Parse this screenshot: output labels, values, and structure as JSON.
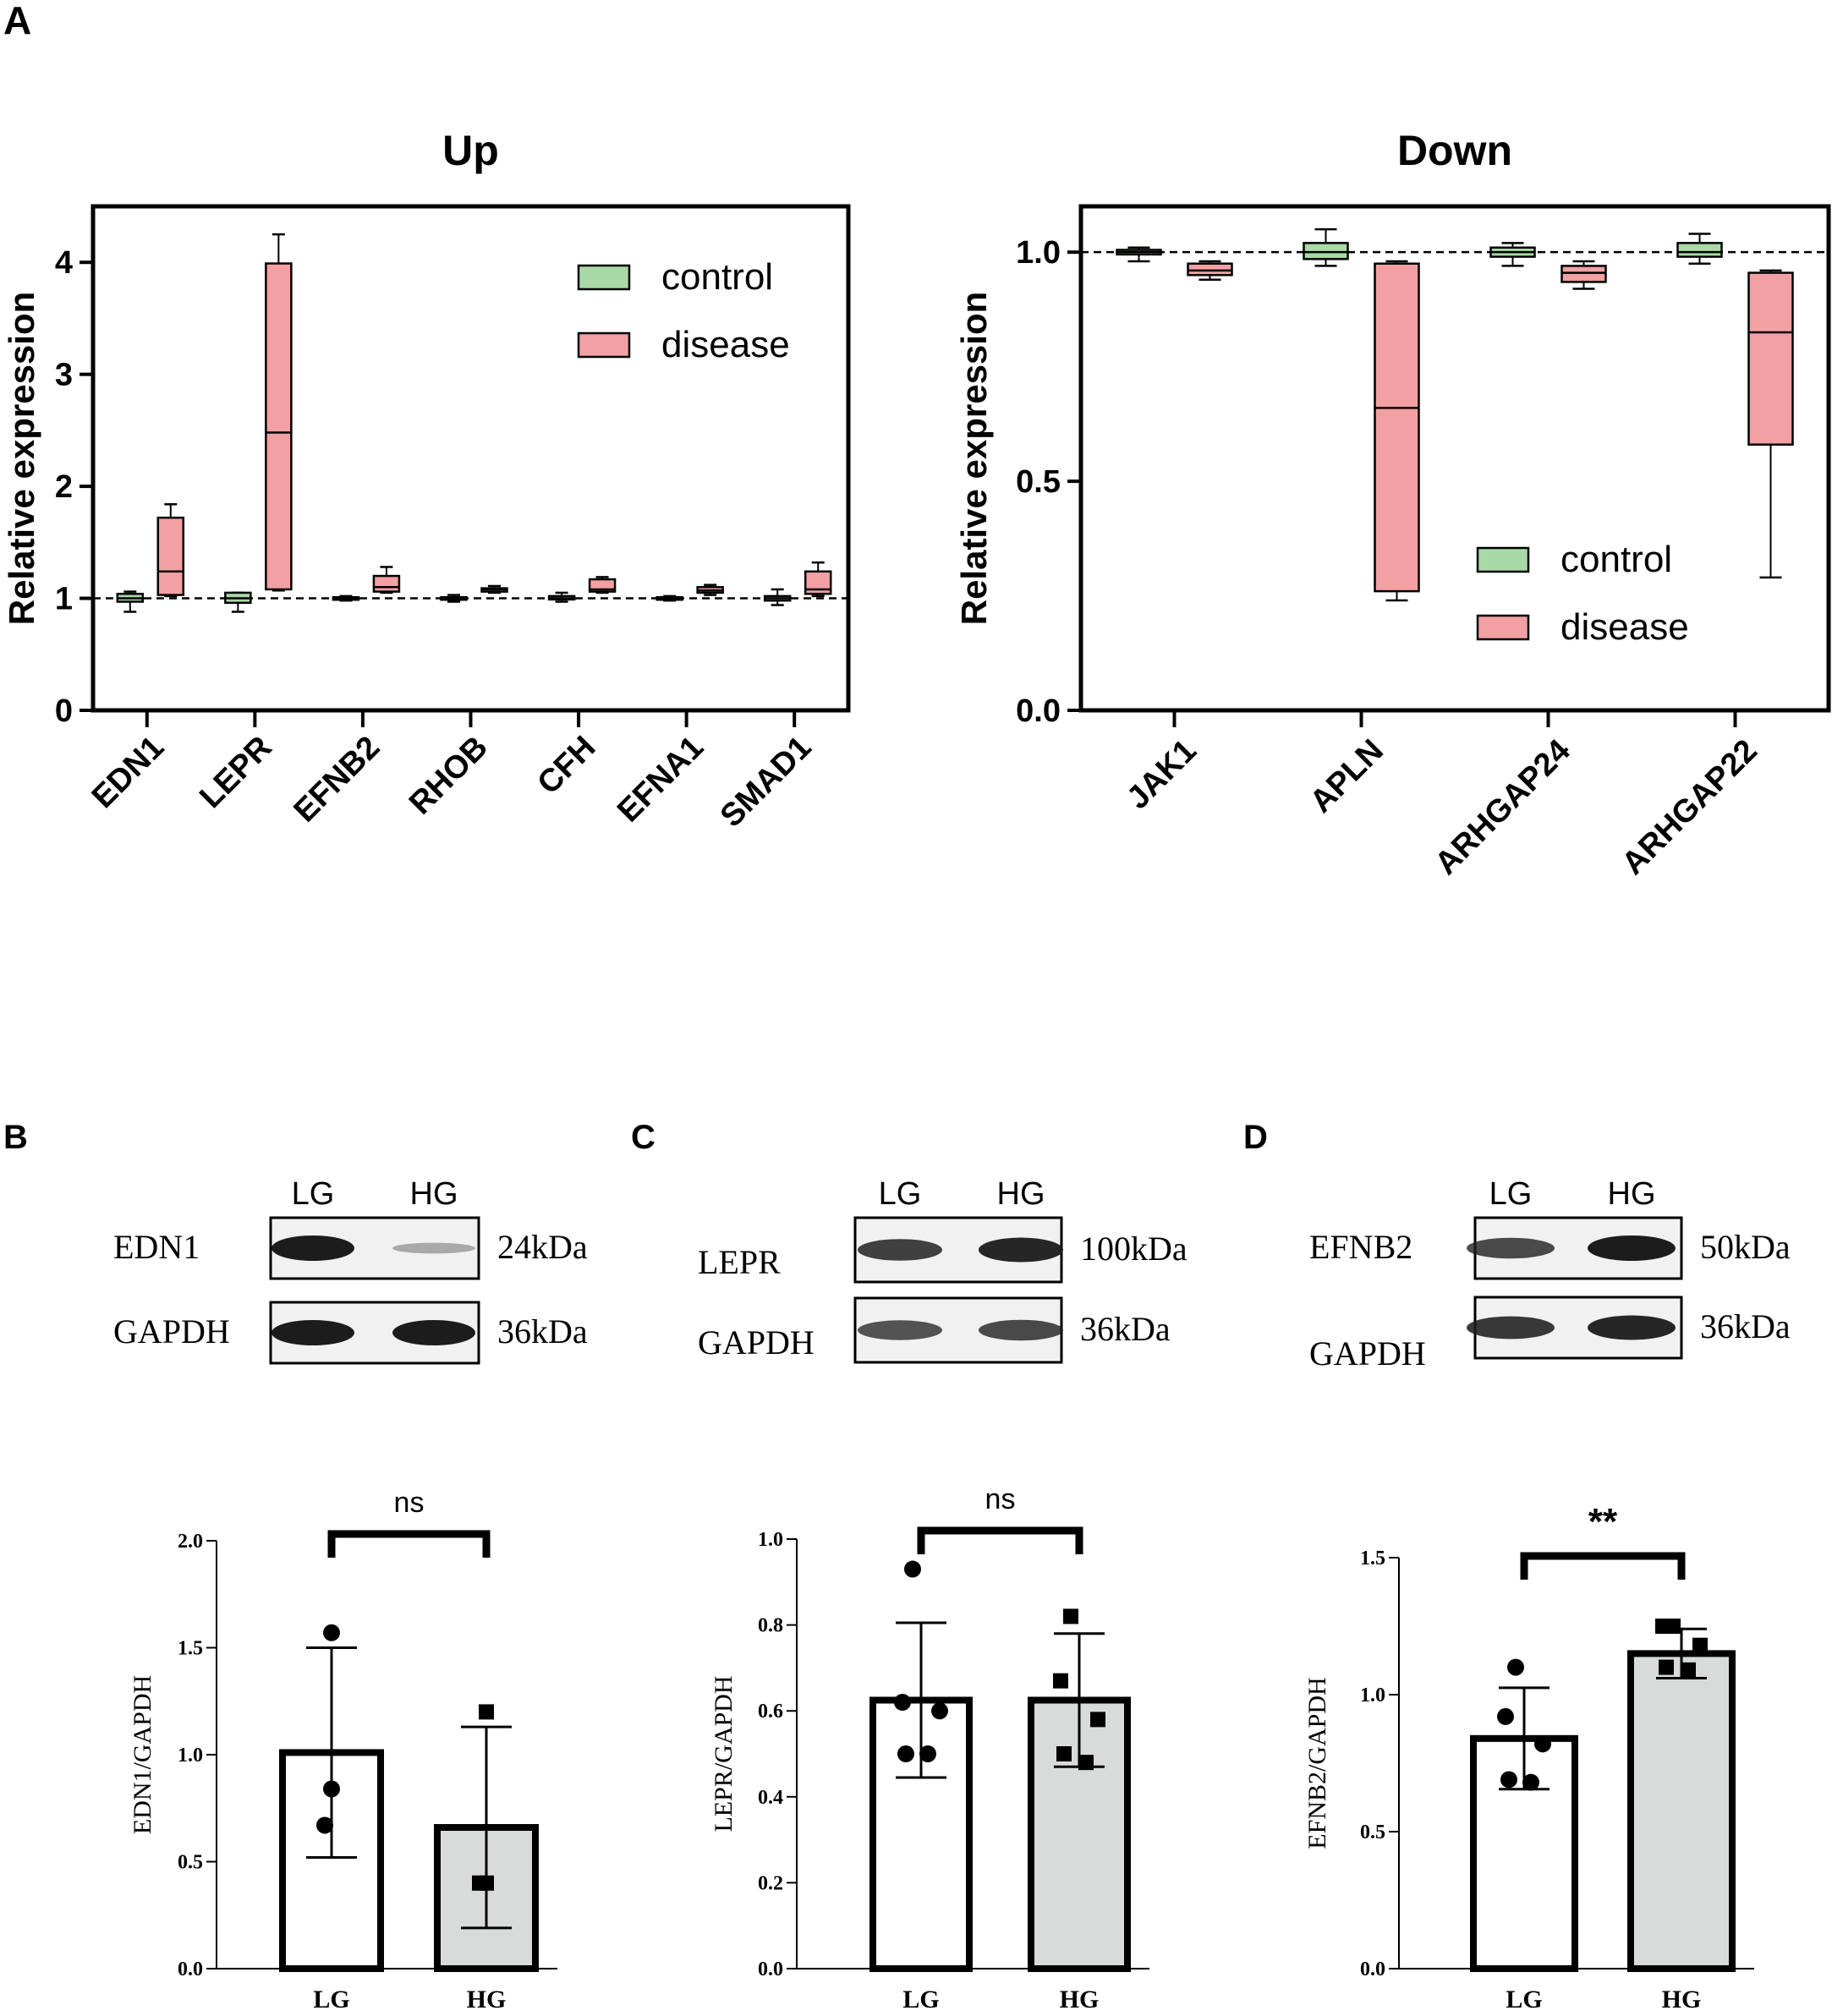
{
  "colors": {
    "control": "#a9d9a5",
    "disease": "#f2a0a3",
    "hg_bar": "#d9dbdb",
    "band": "#1c1c1c",
    "blot_bg": "#f1f1f1"
  },
  "panel_labels": {
    "a": "A",
    "b": "B",
    "c": "C",
    "d": "D"
  },
  "chart_data": [
    {
      "id": "up",
      "type": "box",
      "title": "Up",
      "ylabel": "Relative expression",
      "xlabel": "",
      "ylim": [
        0,
        4.5
      ],
      "yticks": [
        0,
        1,
        2,
        3,
        4
      ],
      "ytick_labels": [
        "0",
        "1",
        "2",
        "3",
        "4"
      ],
      "reference_line": 1,
      "legend": [
        "control",
        "disease"
      ],
      "legend_position": "top-right",
      "categories": [
        "EDN1",
        "LEPR",
        "EFNB2",
        "RHOB",
        "CFH",
        "EFNA1",
        "SMAD1"
      ],
      "series": [
        {
          "name": "control",
          "boxes": [
            {
              "min": 0.88,
              "q1": 0.97,
              "median": 1.0,
              "q3": 1.04,
              "max": 1.06
            },
            {
              "min": 0.88,
              "q1": 0.96,
              "median": 1.0,
              "q3": 1.05,
              "max": 1.05
            },
            {
              "min": 0.98,
              "q1": 0.99,
              "median": 1.0,
              "q3": 1.01,
              "max": 1.02
            },
            {
              "min": 0.97,
              "q1": 0.99,
              "median": 1.0,
              "q3": 1.01,
              "max": 1.03
            },
            {
              "min": 0.97,
              "q1": 0.99,
              "median": 1.0,
              "q3": 1.02,
              "max": 1.05
            },
            {
              "min": 0.98,
              "q1": 0.99,
              "median": 1.0,
              "q3": 1.01,
              "max": 1.02
            },
            {
              "min": 0.94,
              "q1": 0.98,
              "median": 1.0,
              "q3": 1.02,
              "max": 1.08
            }
          ]
        },
        {
          "name": "disease",
          "boxes": [
            {
              "min": 1.02,
              "q1": 1.03,
              "median": 1.24,
              "q3": 1.72,
              "max": 1.84
            },
            {
              "min": 1.07,
              "q1": 1.08,
              "median": 2.48,
              "q3": 3.99,
              "max": 4.25
            },
            {
              "min": 1.05,
              "q1": 1.06,
              "median": 1.1,
              "q3": 1.2,
              "max": 1.28
            },
            {
              "min": 1.05,
              "q1": 1.06,
              "median": 1.08,
              "q3": 1.09,
              "max": 1.11
            },
            {
              "min": 1.05,
              "q1": 1.06,
              "median": 1.08,
              "q3": 1.17,
              "max": 1.19
            },
            {
              "min": 1.03,
              "q1": 1.05,
              "median": 1.07,
              "q3": 1.1,
              "max": 1.12
            },
            {
              "min": 1.02,
              "q1": 1.04,
              "median": 1.08,
              "q3": 1.24,
              "max": 1.32
            }
          ]
        }
      ]
    },
    {
      "id": "down",
      "type": "box",
      "title": "Down",
      "ylabel": "Relative expression",
      "xlabel": "",
      "ylim": [
        0,
        1.1
      ],
      "yticks": [
        0,
        0.5,
        1
      ],
      "ytick_labels": [
        "0.0",
        "0.5",
        "1.0"
      ],
      "reference_line": 1,
      "legend": [
        "control",
        "disease"
      ],
      "legend_position": "bottom-right",
      "categories": [
        "JAK1",
        "APLN",
        "ARHGAP24",
        "ARHGAP22"
      ],
      "series": [
        {
          "name": "control",
          "boxes": [
            {
              "min": 0.98,
              "q1": 0.995,
              "median": 1.0,
              "q3": 1.005,
              "max": 1.01
            },
            {
              "min": 0.97,
              "q1": 0.985,
              "median": 1.0,
              "q3": 1.02,
              "max": 1.05
            },
            {
              "min": 0.97,
              "q1": 0.99,
              "median": 1.0,
              "q3": 1.01,
              "max": 1.02
            },
            {
              "min": 0.975,
              "q1": 0.99,
              "median": 1.0,
              "q3": 1.02,
              "max": 1.04
            }
          ]
        },
        {
          "name": "disease",
          "boxes": [
            {
              "min": 0.94,
              "q1": 0.95,
              "median": 0.96,
              "q3": 0.975,
              "max": 0.98
            },
            {
              "min": 0.24,
              "q1": 0.26,
              "median": 0.66,
              "q3": 0.975,
              "max": 0.98
            },
            {
              "min": 0.92,
              "q1": 0.935,
              "median": 0.955,
              "q3": 0.97,
              "max": 0.98
            },
            {
              "min": 0.29,
              "q1": 0.58,
              "median": 0.825,
              "q3": 0.955,
              "max": 0.96
            }
          ]
        }
      ]
    },
    {
      "id": "edn1_bar",
      "type": "bar",
      "ylabel": "EDN1/GAPDH",
      "ylim": [
        0,
        2
      ],
      "yticks": [
        0,
        0.5,
        1,
        1.5,
        2
      ],
      "ytick_labels": [
        "0.0",
        "0.5",
        "1.0",
        "1.5",
        "2.0"
      ],
      "categories": [
        "LG",
        "HG"
      ],
      "values": [
        1.01,
        0.66
      ],
      "errors": [
        0.49,
        0.47
      ],
      "points": [
        [
          1.57,
          0.84,
          0.67
        ],
        [
          1.2,
          0.4,
          0.4
        ]
      ],
      "significance": "ns"
    },
    {
      "id": "lepr_bar",
      "type": "bar",
      "ylabel": "LEPR/GAPDH",
      "ylim": [
        0,
        1
      ],
      "yticks": [
        0,
        0.2,
        0.4,
        0.6,
        0.8,
        1
      ],
      "ytick_labels": [
        "0.0",
        "0.2",
        "0.4",
        "0.6",
        "0.8",
        "1.0"
      ],
      "categories": [
        "LG",
        "HG"
      ],
      "values": [
        0.625,
        0.625
      ],
      "errors": [
        0.18,
        0.155
      ],
      "points": [
        [
          0.93,
          0.62,
          0.6,
          0.5,
          0.5
        ],
        [
          0.82,
          0.67,
          0.58,
          0.5,
          0.48
        ]
      ],
      "significance": "ns"
    },
    {
      "id": "efnb2_bar",
      "type": "bar",
      "ylabel": "EFNB2/GAPDH",
      "ylim": [
        0,
        1.5
      ],
      "yticks": [
        0,
        0.5,
        1,
        1.5
      ],
      "ytick_labels": [
        "0.0",
        "0.5",
        "1.0",
        "1.5"
      ],
      "categories": [
        "LG",
        "HG"
      ],
      "values": [
        0.84,
        1.15
      ],
      "errors": [
        0.185,
        0.09
      ],
      "points": [
        [
          1.1,
          0.92,
          0.82,
          0.69,
          0.68
        ],
        [
          1.25,
          1.25,
          1.18,
          1.1,
          1.09
        ]
      ],
      "significance": "**"
    }
  ],
  "blots": [
    {
      "id": "b",
      "lanes": [
        "LG",
        "HG"
      ],
      "rows": [
        {
          "protein": "EDN1",
          "size": "24kDa",
          "intensity": [
            1.0,
            0.22
          ]
        },
        {
          "protein": "GAPDH",
          "size": "36kDa",
          "intensity": [
            1.0,
            1.0
          ]
        }
      ]
    },
    {
      "id": "c",
      "lanes": [
        "LG",
        "HG"
      ],
      "rows": [
        {
          "protein": "LEPR",
          "size": "100kDa",
          "intensity": [
            0.8,
            0.95
          ]
        },
        {
          "protein": "GAPDH",
          "size": "36kDa",
          "intensity": [
            0.7,
            0.75
          ]
        }
      ]
    },
    {
      "id": "d",
      "lanes": [
        "LG",
        "HG"
      ],
      "rows": [
        {
          "protein": "EFNB2",
          "size": "50kDa",
          "intensity": [
            0.75,
            1.0
          ]
        },
        {
          "protein": "GAPDH",
          "size": "36kDa",
          "intensity": [
            0.85,
            0.95
          ]
        }
      ]
    }
  ]
}
